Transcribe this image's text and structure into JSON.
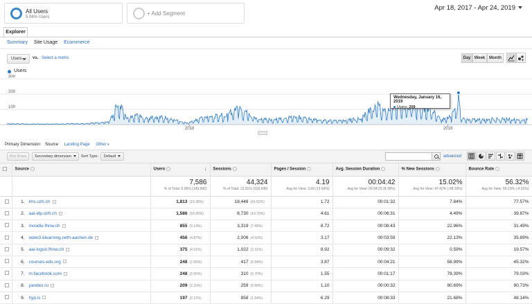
{
  "segments": {
    "active": {
      "title": "All Users",
      "subtitle": "5.06% Users"
    },
    "add_label": "+ Add Segment"
  },
  "date_range": "Apr 18, 2017 - Apr 24, 2019",
  "tab": "Explorer",
  "subtabs": [
    "Summary",
    "Site Usage",
    "Ecommerce"
  ],
  "metric": {
    "selected": "Users",
    "vs": "vs.",
    "select_metric": "Select a metric"
  },
  "periods": [
    "Day",
    "Week",
    "Month"
  ],
  "legend": "Users",
  "chart_data": {
    "type": "area",
    "series_name": "Users",
    "color": "#2b78c2",
    "y_ticks": [
      "300",
      "200",
      "100"
    ],
    "ylim": [
      0,
      300
    ],
    "x_ticks": [
      "2018",
      "2019"
    ],
    "x_range": [
      "2017-04-18",
      "2019-04-24"
    ],
    "points": [
      {
        "x": "2017-04-18",
        "y": 6
      },
      {
        "x": "2017-05-15",
        "y": 5
      },
      {
        "x": "2017-06-15",
        "y": 4
      },
      {
        "x": "2017-07-15",
        "y": 6
      },
      {
        "x": "2017-08-10",
        "y": 8
      },
      {
        "x": "2017-08-25",
        "y": 14
      },
      {
        "x": "2017-09-10",
        "y": 20
      },
      {
        "x": "2017-09-20",
        "y": 115
      },
      {
        "x": "2017-09-25",
        "y": 125
      },
      {
        "x": "2017-10-05",
        "y": 45
      },
      {
        "x": "2017-10-20",
        "y": 60
      },
      {
        "x": "2017-11-05",
        "y": 40
      },
      {
        "x": "2017-11-20",
        "y": 55
      },
      {
        "x": "2017-12-10",
        "y": 35
      },
      {
        "x": "2017-12-28",
        "y": 10
      },
      {
        "x": "2018-01-15",
        "y": 40
      },
      {
        "x": "2018-02-01",
        "y": 50
      },
      {
        "x": "2018-02-25",
        "y": 70
      },
      {
        "x": "2018-03-10",
        "y": 110
      },
      {
        "x": "2018-04-05",
        "y": 45
      },
      {
        "x": "2018-05-01",
        "y": 35
      },
      {
        "x": "2018-06-01",
        "y": 50
      },
      {
        "x": "2018-07-01",
        "y": 30
      },
      {
        "x": "2018-08-01",
        "y": 25
      },
      {
        "x": "2018-09-01",
        "y": 40
      },
      {
        "x": "2018-09-20",
        "y": 130
      },
      {
        "x": "2018-10-05",
        "y": 90
      },
      {
        "x": "2018-10-25",
        "y": 140
      },
      {
        "x": "2018-11-15",
        "y": 120
      },
      {
        "x": "2018-12-05",
        "y": 110
      },
      {
        "x": "2018-12-22",
        "y": 30
      },
      {
        "x": "2019-01-05",
        "y": 50
      },
      {
        "x": "2019-01-15",
        "y": 120
      },
      {
        "x": "2019-01-16",
        "y": 209
      },
      {
        "x": "2019-01-19",
        "y": 40
      },
      {
        "x": "2019-02-10",
        "y": 30
      },
      {
        "x": "2019-03-01",
        "y": 35
      },
      {
        "x": "2019-03-20",
        "y": 40
      },
      {
        "x": "2019-04-10",
        "y": 30
      },
      {
        "x": "2019-04-24",
        "y": 35
      }
    ],
    "tooltip": {
      "title": "Wednesday, January 16, 2019",
      "label": "Users:",
      "value": "209"
    }
  },
  "dimension_bar": {
    "label": "Primary Dimension:",
    "current": "Source",
    "options": [
      "Landing Page",
      "Other"
    ]
  },
  "table_toolbar": {
    "plot_rows": "Plot Rows",
    "secondary_dimension": "Secondary dimension",
    "sort_type_label": "Sort Type:",
    "sort_type": "Default",
    "advanced": "advanced"
  },
  "table": {
    "headers": [
      "Source",
      "Users",
      "Sessions",
      "Pages / Session",
      "Avg. Session Duration",
      "% New Sessions",
      "Bounce Rate"
    ],
    "totals": [
      {
        "big": "7,586",
        "small": "% of Total: 5.06% (149,996)"
      },
      {
        "big": "44,324",
        "small": "% of Total: 13.91% (318,648)"
      },
      {
        "big": "4.19",
        "small": "Avg for View: 3.69 (13.66%)"
      },
      {
        "big": "00:04:42",
        "small": "Avg for View: 00:04:20 (8.39%)"
      },
      {
        "big": "15.02%",
        "small": "Avg for View: 47.42% (-68.33%)"
      },
      {
        "big": "56.32%",
        "small": "Avg for View: 59.23% (-4.91%)"
      }
    ],
    "rows": [
      {
        "idx": "1.",
        "source": "lms.uzh.ch",
        "users": "1,813",
        "users_pct": "(19.38%)",
        "sessions": "18,448",
        "sessions_pct": "(41.62%)",
        "pps": "1.72",
        "dur": "00:01:32",
        "new": "7.84%",
        "bounce": "77.57%"
      },
      {
        "idx": "2.",
        "source": "aai-idp.uzh.ch",
        "users": "1,586",
        "users_pct": "(16.95%)",
        "sessions": "8,730",
        "sessions_pct": "(19.70%)",
        "pps": "4.61",
        "dur": "00:06:31",
        "new": "4.49%",
        "bounce": "39.87%"
      },
      {
        "idx": "3.",
        "source": "moodle.fhnw.ch",
        "users": "855",
        "users_pct": "(9.14%)",
        "sessions": "3,319",
        "sessions_pct": "(7.49%)",
        "pps": "8.72",
        "dur": "00:08:43",
        "new": "22.96%",
        "bounce": "31.49%"
      },
      {
        "idx": "4.",
        "source": "www3.elearning.rwth-aachen.de",
        "users": "456",
        "users_pct": "(4.87%)",
        "sessions": "2,006",
        "sessions_pct": "(4.53%)",
        "pps": "3.17",
        "dur": "00:03:59",
        "new": "22.13%",
        "bounce": "35.89%"
      },
      {
        "idx": "5.",
        "source": "aai-logon.fhnw.ch",
        "users": "375",
        "users_pct": "(4.01%)",
        "sessions": "1,022",
        "sessions_pct": "(2.31%)",
        "pps": "8.92",
        "dur": "00:09:32",
        "new": "0.59%",
        "bounce": "19.57%"
      },
      {
        "idx": "6.",
        "source": "courses.edx.org",
        "users": "248",
        "users_pct": "(2.65%)",
        "sessions": "417",
        "sessions_pct": "(0.94%)",
        "pps": "3.87",
        "dur": "00:04:21",
        "new": "58.99%",
        "bounce": "45.32%"
      },
      {
        "idx": "7.",
        "source": "m.facebook.com",
        "users": "248",
        "users_pct": "(2.65%)",
        "sessions": "310",
        "sessions_pct": "(0.70%)",
        "pps": "1.55",
        "dur": "00:01:17",
        "new": "78.39%",
        "bounce": "79.03%"
      },
      {
        "idx": "8.",
        "source": "yandex.ru",
        "users": "209",
        "users_pct": "(2.23%)",
        "sessions": "259",
        "sessions_pct": "(0.58%)",
        "pps": "1.10",
        "dur": "00:00:32",
        "new": "80.69%",
        "bounce": "90.73%"
      },
      {
        "idx": "9.",
        "source": "hyp.is",
        "users": "197",
        "users_pct": "(2.11%)",
        "sessions": "858",
        "sessions_pct": "(1.94%)",
        "pps": "6.29",
        "dur": "00:08:33",
        "new": "21.68%",
        "bounce": "48.14%"
      }
    ]
  }
}
